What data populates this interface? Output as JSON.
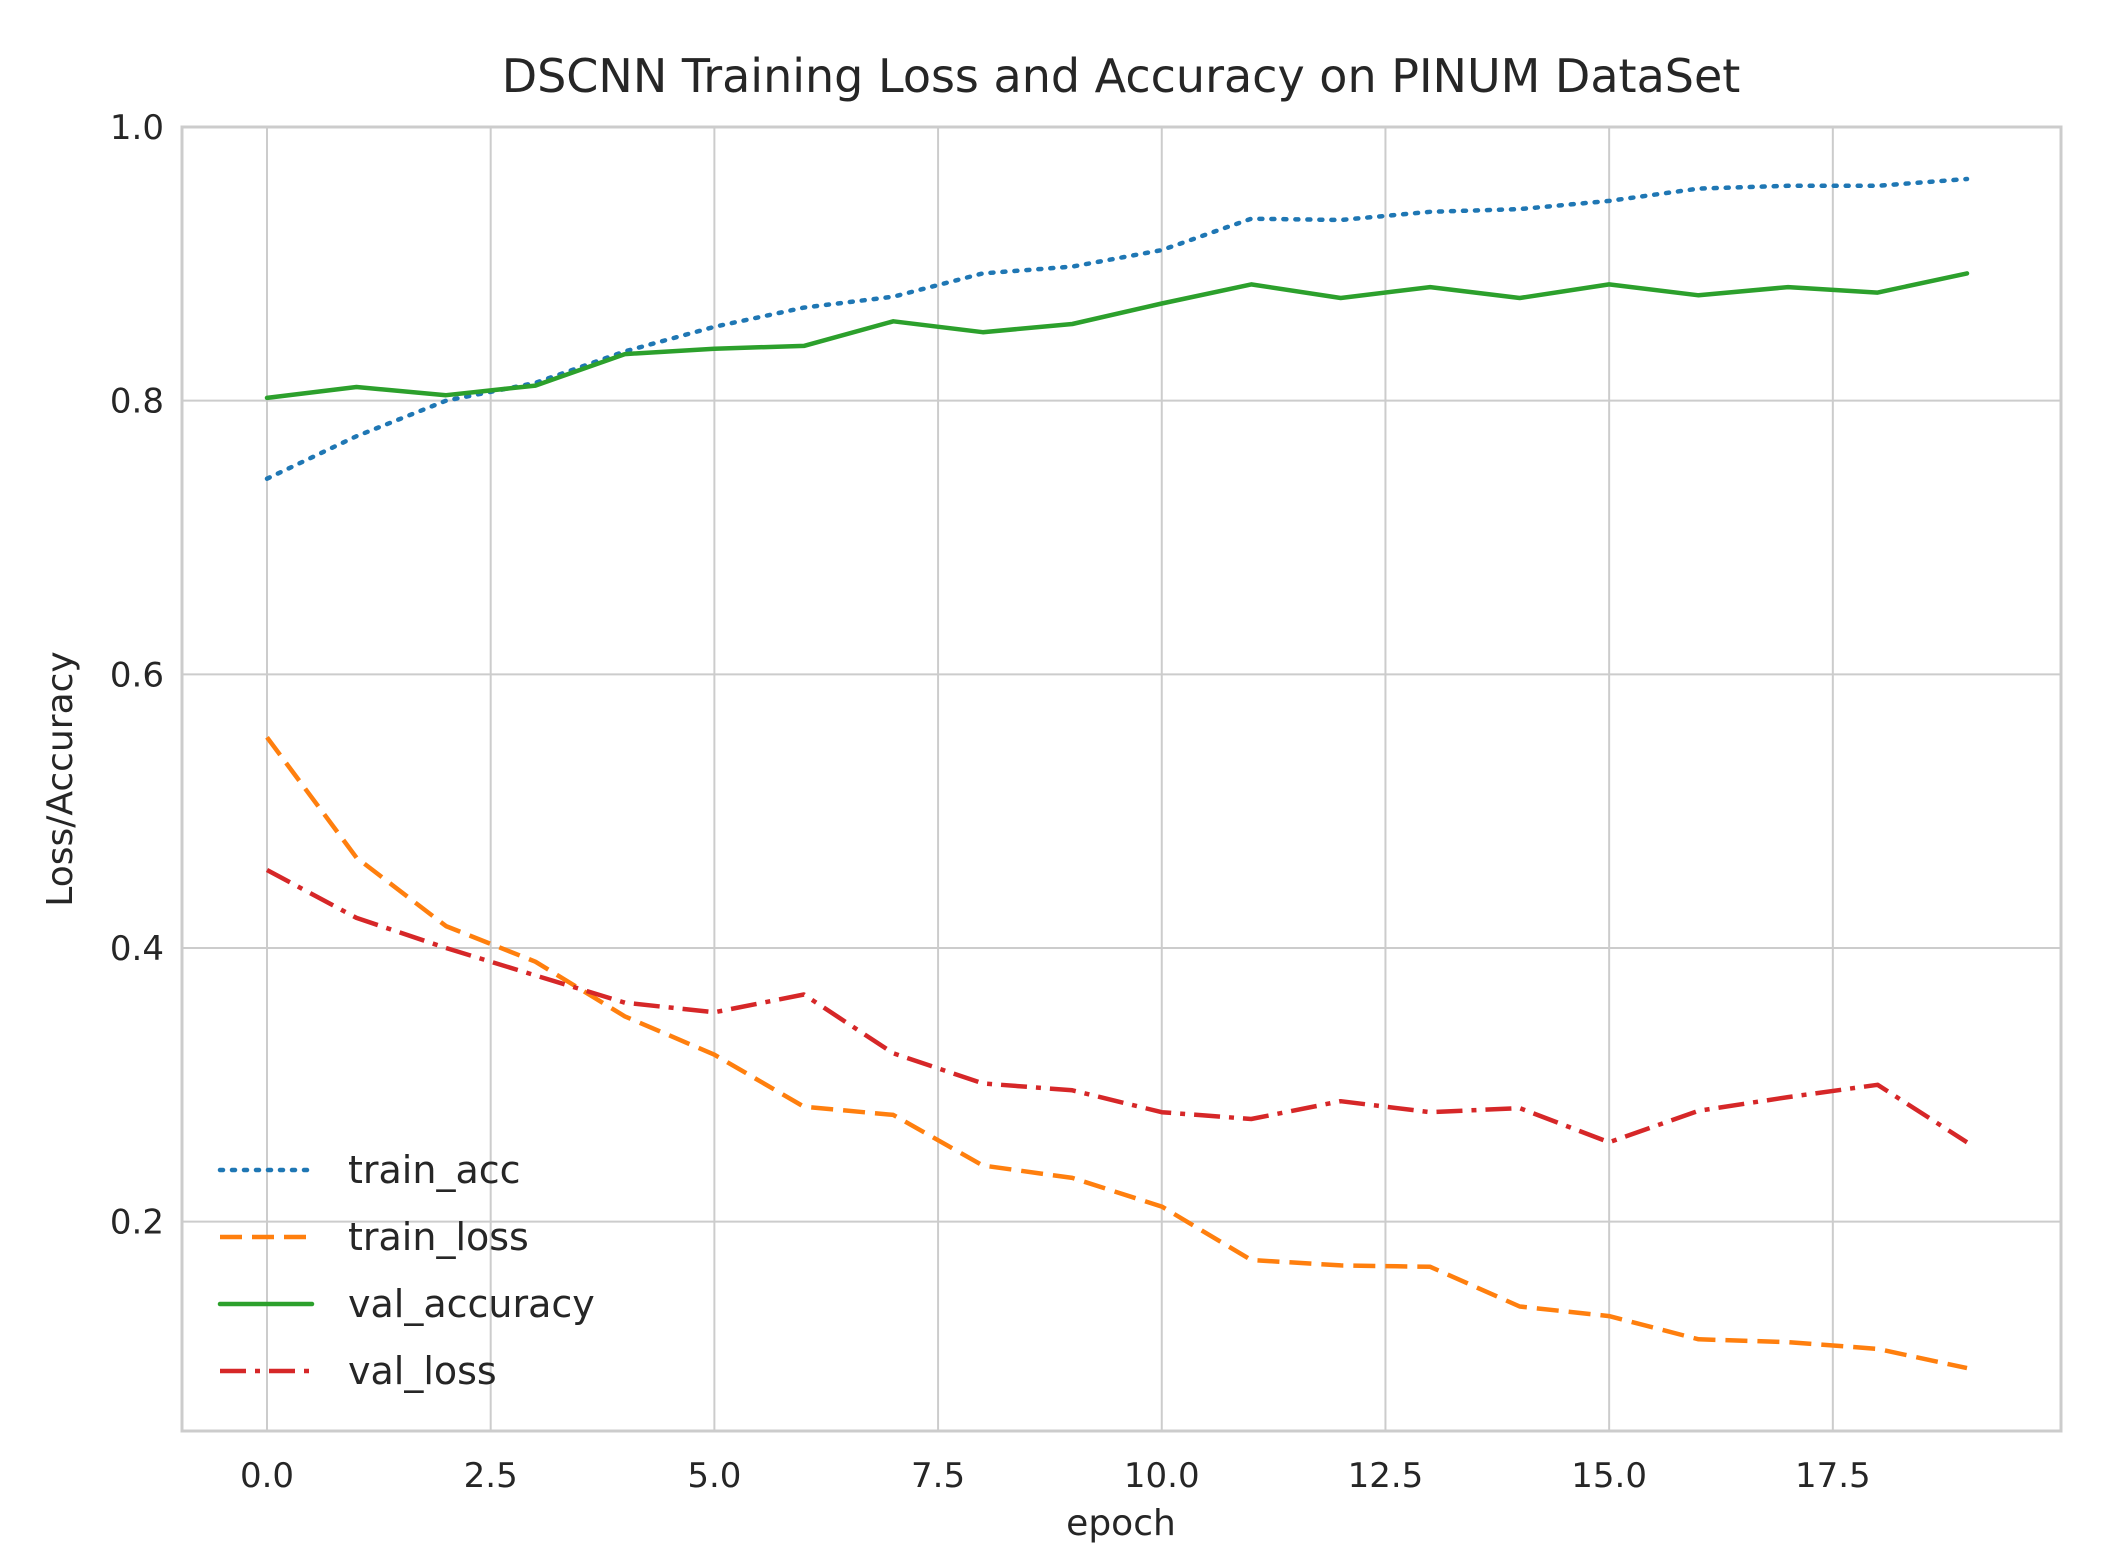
{
  "chart_data": {
    "type": "line",
    "title": "DSCNN Training Loss and Accuracy on PINUM DataSet",
    "xlabel": "epoch",
    "ylabel": "Loss/Accuracy",
    "xlim": [
      -0.95,
      20.05
    ],
    "ylim": [
      0.047,
      1.0
    ],
    "grid": true,
    "legend_position": "lower-left",
    "x_ticks": [
      0.0,
      2.5,
      5.0,
      7.5,
      10.0,
      12.5,
      15.0,
      17.5
    ],
    "x_tick_labels": [
      "0.0",
      "2.5",
      "5.0",
      "7.5",
      "10.0",
      "12.5",
      "15.0",
      "17.5"
    ],
    "y_ticks": [
      0.2,
      0.4,
      0.6,
      0.8,
      1.0
    ],
    "y_tick_labels": [
      "0.2",
      "0.4",
      "0.6",
      "0.8",
      "1.0"
    ],
    "x": [
      0,
      1,
      2,
      3,
      4,
      5,
      6,
      7,
      8,
      9,
      10,
      11,
      12,
      13,
      14,
      15,
      16,
      17,
      18,
      19
    ],
    "series": [
      {
        "name": "train_acc",
        "color": "#1f77b4",
        "style": "dotted",
        "values": [
          0.743,
          0.774,
          0.8,
          0.813,
          0.836,
          0.854,
          0.868,
          0.876,
          0.893,
          0.898,
          0.91,
          0.933,
          0.932,
          0.938,
          0.94,
          0.946,
          0.955,
          0.957,
          0.957,
          0.962
        ]
      },
      {
        "name": "train_loss",
        "color": "#ff7f0e",
        "style": "dashed",
        "values": [
          0.554,
          0.466,
          0.416,
          0.39,
          0.35,
          0.322,
          0.284,
          0.278,
          0.241,
          0.232,
          0.211,
          0.172,
          0.168,
          0.167,
          0.138,
          0.131,
          0.114,
          0.112,
          0.107,
          0.093
        ]
      },
      {
        "name": "val_accuracy",
        "color": "#2ca02c",
        "style": "solid",
        "values": [
          0.802,
          0.81,
          0.804,
          0.811,
          0.834,
          0.838,
          0.84,
          0.858,
          0.85,
          0.856,
          0.871,
          0.885,
          0.875,
          0.883,
          0.875,
          0.885,
          0.877,
          0.883,
          0.879,
          0.893
        ]
      },
      {
        "name": "val_loss",
        "color": "#d62728",
        "style": "dashdot",
        "values": [
          0.457,
          0.422,
          0.4,
          0.38,
          0.36,
          0.353,
          0.366,
          0.323,
          0.301,
          0.296,
          0.28,
          0.275,
          0.288,
          0.28,
          0.283,
          0.258,
          0.281,
          0.291,
          0.3,
          0.258
        ]
      }
    ]
  }
}
